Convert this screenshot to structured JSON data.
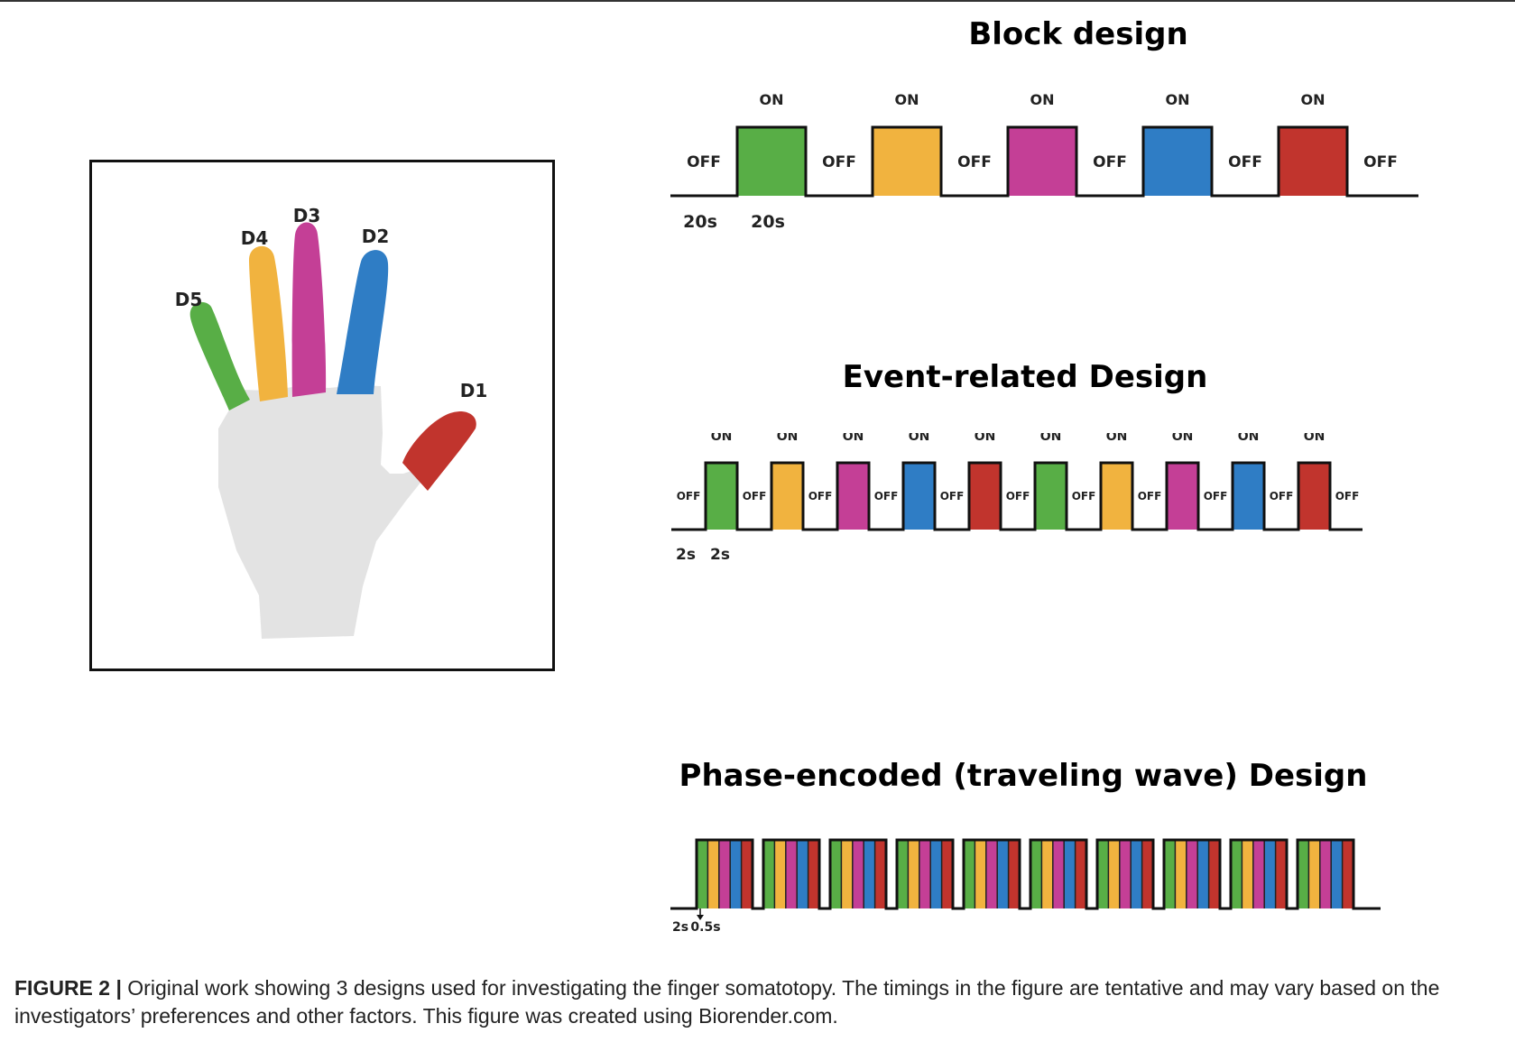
{
  "colors": {
    "green": "#58AE46",
    "yellow": "#F1B33F",
    "magenta": "#C43F96",
    "blue": "#2F7DC5",
    "red": "#C1342D",
    "palm": "#E3E3E3"
  },
  "hand": {
    "fingers": [
      {
        "label": "D5",
        "color": "green"
      },
      {
        "label": "D4",
        "color": "yellow"
      },
      {
        "label": "D3",
        "color": "magenta"
      },
      {
        "label": "D2",
        "color": "blue"
      },
      {
        "label": "D1",
        "color": "red"
      }
    ]
  },
  "block_design": {
    "title": "Block design",
    "on_label": "ON",
    "off_label": "OFF",
    "on_colors": [
      "green",
      "yellow",
      "magenta",
      "blue",
      "red"
    ],
    "timing": {
      "off": "20s",
      "on": "20s"
    }
  },
  "event_design": {
    "title": "Event-related Design",
    "on_label": "ON",
    "off_label": "OFF",
    "on_colors": [
      "green",
      "yellow",
      "magenta",
      "blue",
      "red",
      "green",
      "yellow",
      "magenta",
      "blue",
      "red"
    ],
    "timing": {
      "off": "2s",
      "on": "2s"
    }
  },
  "phase_design": {
    "title": "Phase-encoded (traveling wave) Design",
    "cycles": 10,
    "stripe_colors": [
      "green",
      "yellow",
      "magenta",
      "blue",
      "red"
    ],
    "timing": {
      "off": "2s",
      "on": "0.5s"
    }
  },
  "caption": {
    "figure_label": "FIGURE 2 |",
    "text": "Original work showing 3 designs used for investigating the finger somatotopy. The timings in the figure are tentative and may vary based on the investigators’ preferences and other factors. This figure was created using Biorender.com."
  }
}
